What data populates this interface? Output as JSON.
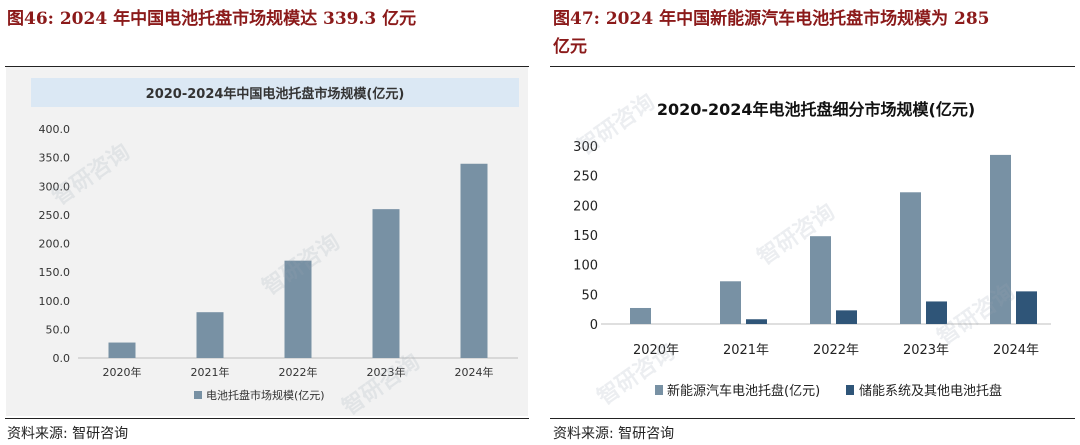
{
  "left": {
    "figure_title": "图46:  2024 年中国电池托盘市场规模达 339.3 亿元",
    "source": "资料来源:  智研咨询"
  },
  "right": {
    "figure_title_line1": "图47:  2024 年中国新能源汽车电池托盘市场规模为 285",
    "figure_title_line2": "亿元",
    "source": "资料来源:  智研咨询"
  },
  "watermark": "智研咨询",
  "colors": {
    "title_red": "#8b1a1a",
    "bar_light": "#7891a4",
    "bar_dark": "#2f5578",
    "left_title_band": "#dbe8f4",
    "left_panel_bg": "#f2f2f2"
  },
  "chart_data": [
    {
      "type": "bar",
      "title": "2020-2024年中国电池托盘市场规模(亿元)",
      "categories": [
        "2020年",
        "2021年",
        "2022年",
        "2023年",
        "2024年"
      ],
      "series": [
        {
          "name": "电池托盘市场规模(亿元)",
          "values": [
            27,
            80,
            170,
            260,
            339.3
          ]
        }
      ],
      "ylim": [
        0,
        400
      ],
      "yticks": [
        "0.0",
        "50.0",
        "100.0",
        "150.0",
        "200.0",
        "250.0",
        "300.0",
        "350.0",
        "400.0"
      ],
      "grid": false,
      "legend": "bottom"
    },
    {
      "type": "bar",
      "title": "2020-2024年电池托盘细分市场规模(亿元)",
      "categories": [
        "2020年",
        "2021年",
        "2022年",
        "2023年",
        "2024年"
      ],
      "series": [
        {
          "name": "新能源汽车电池托盘(亿元)",
          "values": [
            27,
            72,
            148,
            222,
            285
          ]
        },
        {
          "name": "储能系统及其他电池托盘",
          "values": [
            0,
            8,
            23,
            38,
            55
          ]
        }
      ],
      "ylim": [
        0,
        300
      ],
      "yticks": [
        "0",
        "50",
        "100",
        "150",
        "200",
        "250",
        "300"
      ],
      "grid": false,
      "legend": "bottom"
    }
  ]
}
